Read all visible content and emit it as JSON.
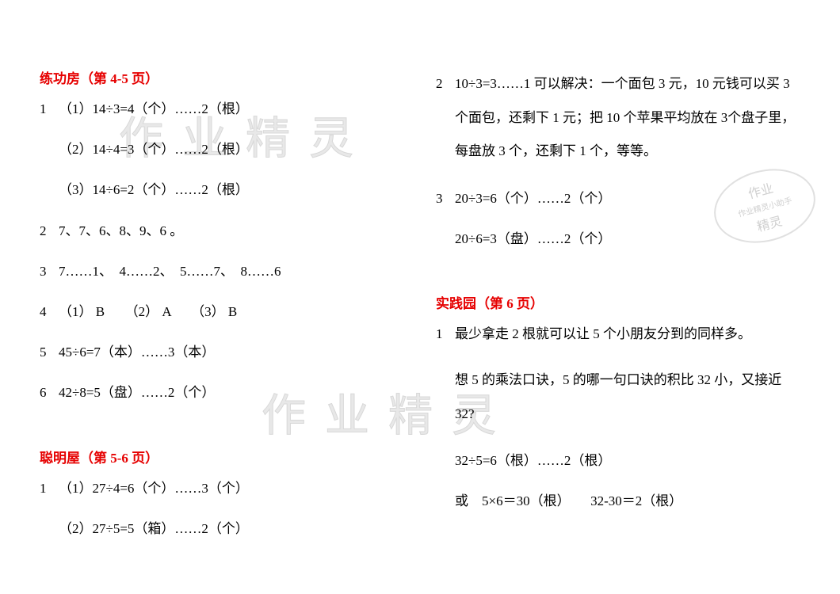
{
  "styling": {
    "title_color": "#e60000",
    "text_color": "#000000",
    "background_color": "#ffffff",
    "watermark_color": "#e8e8e8",
    "stamp_color": "#d0d0d0",
    "font_size_body": 17,
    "font_size_watermark": 56,
    "font_family_body": "SimSun",
    "font_family_watermark": "KaiTi"
  },
  "watermark_text": "作业精灵",
  "stamp": {
    "line1": "作业",
    "line2": "作业精灵小助手",
    "line3": "精灵"
  },
  "left": {
    "section1": {
      "title": "练功房（第 4-5 页）",
      "q1_num": "1",
      "q1_line1": "（1）14÷3=4（个）……2（根）",
      "q1_line2": "（2）14÷4=3（个）……2（根）",
      "q1_line3": "（3）14÷6=2（个）……2（根）",
      "q2_num": "2",
      "q2_content": "7、7、6、8、9、6 。",
      "q3_num": "3",
      "q3_content": "7……1、　4……2、　5……7、　8……6",
      "q4_num": "4",
      "q4_content": "（1） B　　（2） A　　（3） B",
      "q5_num": "5",
      "q5_content": "45÷6=7（本）……3（本）",
      "q6_num": "6",
      "q6_content": "42÷8=5（盘）……2（个）"
    },
    "section2": {
      "title": "聪明屋（第 5-6 页）",
      "q1_num": "1",
      "q1_line1": "（1）27÷4=6（个）……3（个）",
      "q1_line2": "（2）27÷5=5（箱）……2（个）"
    }
  },
  "right": {
    "q2_num": "2",
    "q2_content": "10÷3=3……1 可以解决：一个面包 3 元，10 元钱可以买 3 个面包，还剩下 1 元；把 10 个苹果平均放在 3个盘子里，每盘放 3 个，还剩下 1 个，等等。",
    "q3_num": "3",
    "q3_line1": "20÷3=6（个）……2（个）",
    "q3_line2": "20÷6=3（盘）……2（个）",
    "section2": {
      "title": "实践园（第 6 页）",
      "q1_num": "1",
      "q1_line1": "最少拿走 2 根就可以让 5 个小朋友分到的同样多。",
      "q1_line2": "想 5 的乘法口诀，5 的哪一句口诀的积比 32 小，又接近 32?",
      "q1_line3": "32÷5=6（根）……2（根）",
      "q1_line4": "或　5×6＝30（根）　　32-30＝2（根）"
    }
  }
}
